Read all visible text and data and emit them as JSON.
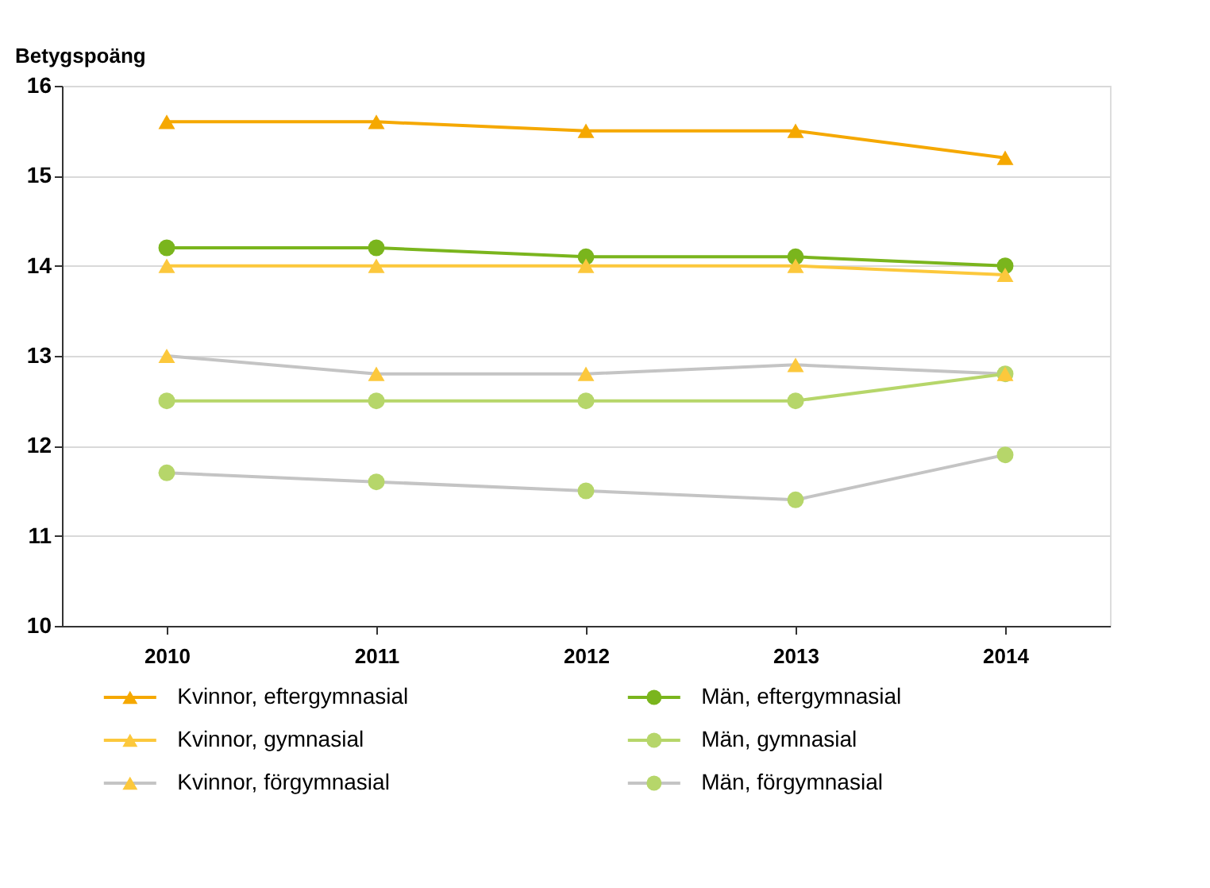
{
  "chart_data": {
    "type": "line",
    "ylabel": "Betygspoäng",
    "categories": [
      "2010",
      "2011",
      "2012",
      "2013",
      "2014"
    ],
    "series": [
      {
        "name": "Kvinnor, eftergymnasial",
        "color": "#f5a800",
        "marker": "triangle",
        "values": [
          15.6,
          15.6,
          15.5,
          15.5,
          15.2
        ]
      },
      {
        "name": "Kvinnor, gymnasial",
        "color": "#fcc83c",
        "marker": "triangle",
        "values": [
          14.0,
          14.0,
          14.0,
          14.0,
          13.9
        ]
      },
      {
        "name": "Kvinnor, förgymnasial",
        "color": "#c4c4c4",
        "colors": [
          "#fcc83c",
          "#fcc83c",
          "#fcc83c",
          "#fcc83c",
          "#fcc83c"
        ],
        "marker": "triangle",
        "values": [
          13.0,
          12.8,
          12.8,
          12.9,
          12.8
        ]
      },
      {
        "name": "Män, eftergymnasial",
        "color": "#7ab51d",
        "marker": "circle",
        "values": [
          14.2,
          14.2,
          14.1,
          14.1,
          14.0
        ]
      },
      {
        "name": "Män, gymnasial",
        "color": "#b6d66a",
        "marker": "circle",
        "values": [
          12.5,
          12.5,
          12.5,
          12.5,
          12.8
        ]
      },
      {
        "name": "Män, förgymnasial",
        "color": "#c4c4c4",
        "colors": [
          "#b6d66a",
          "#b6d66a",
          "#b6d66a",
          "#b6d66a",
          "#b6d66a"
        ],
        "marker": "circle",
        "values": [
          11.7,
          11.6,
          11.5,
          11.4,
          11.9
        ]
      }
    ],
    "ylim": [
      10,
      16
    ],
    "yticks": [
      10,
      11,
      12,
      13,
      14,
      15,
      16
    ],
    "grid": "y",
    "legend": "bottom"
  }
}
